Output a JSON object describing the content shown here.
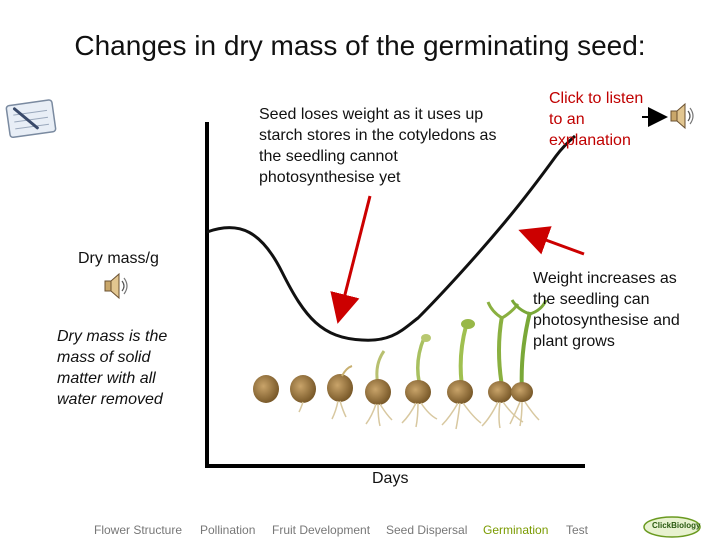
{
  "title": "Changes in dry mass of the germinating seed:",
  "notes": {
    "seed_loses": "Seed loses weight as it uses up starch stores in the cotyledons as the seedling cannot photosynthesise yet",
    "click_to_listen": "Click to listen to an explanation",
    "weight_increases": "Weight increases as the seedling can photosynthesise and plant grows",
    "dry_mass_def": "Dry mass is the mass of solid matter with all water removed"
  },
  "axes": {
    "ylabel": "Dry mass/g",
    "xlabel": "Days"
  },
  "nav": {
    "items": [
      "Flower Structure",
      "Pollination",
      "Fruit Development",
      "Seed Dispersal",
      "Germination",
      "Test"
    ],
    "active": "Germination"
  },
  "logo_text": "ClickBiology",
  "colors": {
    "arrow_red": "#cc0000",
    "nav_active": "#7a9a00",
    "nav_text": "#777777",
    "seed_brown": "#8a6a3a",
    "shoot_green": "#8ab040"
  },
  "icons": [
    "notepad-icon",
    "speaker-icon",
    "speaker-icon",
    "seed-icon"
  ]
}
